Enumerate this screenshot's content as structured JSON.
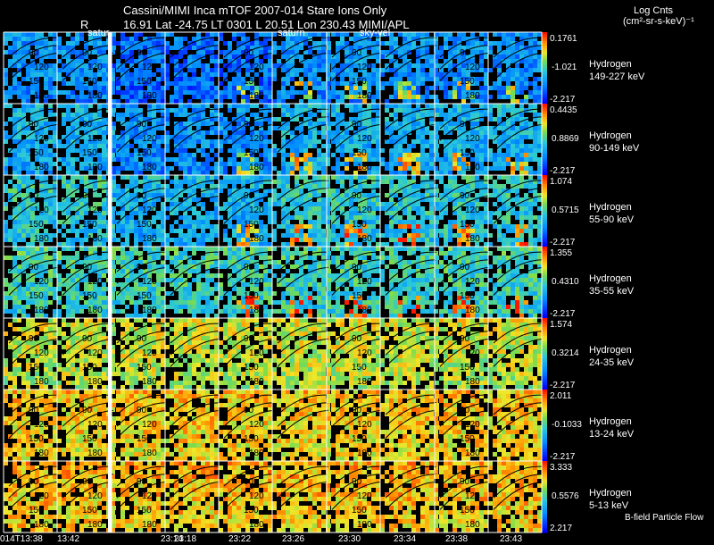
{
  "header": {
    "line1": "Cassini/MIMI Inca mTOF  2007-014   Stare    Ions Only",
    "r_label": "R",
    "line2": "16.91 Lat -24.75 LT 0301 L         20.51 Lon        230.43  MIMI/APL",
    "overlay_labels": [
      "satur",
      "saturn",
      "sky-vel"
    ]
  },
  "colorbar_title": "Log Cnts",
  "colorbar_units": "(cm²-sr-s-keV)⁻¹",
  "footer": {
    "times": [
      "014T13:38",
      "13:42",
      "23:14",
      "23:18",
      "23:22",
      "23:26",
      "23:30",
      "23:34",
      "23:38",
      "23:43"
    ],
    "legend": "B-field Particle Flow"
  },
  "chart_data": {
    "type": "heatmap",
    "title": "Cassini/MIMI Inca mTOF 2007-014 Stare Ions Only",
    "species": "Hydrogen",
    "columns": [
      "014T13:38",
      "13:42",
      "23:14",
      "23:18",
      "23:22",
      "23:26",
      "23:30",
      "23:34",
      "23:38",
      "23:43"
    ],
    "pitch_angle_contours": [
      "90",
      "120",
      "150",
      "180"
    ],
    "rows": [
      {
        "energy": "149-227 keV",
        "max": "0.1761",
        "mid": "-1.021",
        "min": "-2.217"
      },
      {
        "energy": "90-149 keV",
        "max": "0.4435",
        "mid": "0.8869",
        "min": "-2.217"
      },
      {
        "energy": "55-90 keV",
        "max": "1.074",
        "mid": "0.5715",
        "min": "-2.217"
      },
      {
        "energy": "35-55 keV",
        "max": "1.355",
        "mid": "0.4310",
        "min": "-2.217"
      },
      {
        "energy": "24-35 keV",
        "max": "1.574",
        "mid": "0.3214",
        "min": "-2.217"
      },
      {
        "energy": "13-24 keV",
        "max": "2.011",
        "mid": "-0.1033",
        "min": "-2.217"
      },
      {
        "energy": "5-13 keV",
        "max": "3.333",
        "mid": "0.5576",
        "min": "2.217"
      }
    ]
  },
  "colors": {
    "background": "#000000",
    "divider": "#ffffff",
    "low": "#0000ff",
    "mid": "#34cfe0",
    "high": "#ff0000"
  }
}
